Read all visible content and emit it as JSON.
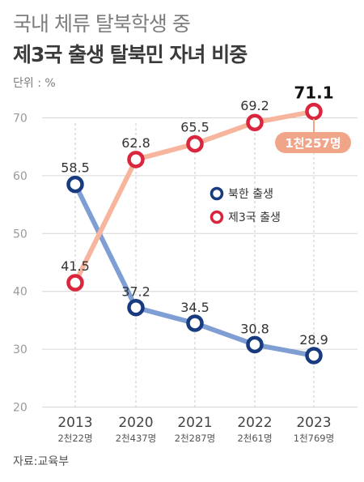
{
  "title": "국내 체류 탈북학생 중",
  "subtitle": "제3국 출생 탈북민 자녀 비중",
  "unit_label": "단위 : %",
  "source": "자료:교육부",
  "chart_data": {
    "type": "line",
    "x": [
      "2013",
      "2020",
      "2021",
      "2022",
      "2023"
    ],
    "x_sublabels": [
      "2천22명",
      "2천437명",
      "2천287명",
      "2천61명",
      "1천769명"
    ],
    "ylim": [
      20,
      72
    ],
    "yticks": [
      20,
      30,
      40,
      50,
      60,
      70
    ],
    "grid": true,
    "legend_position": "middle-right",
    "series": [
      {
        "name": "북한 출생",
        "values": [
          58.5,
          37.2,
          34.5,
          30.8,
          28.9
        ],
        "labels": [
          "58.5",
          "37.2",
          "34.5",
          "30.8",
          "28.9"
        ],
        "line_color": "#7f9ed4",
        "marker_color": "#173b7e"
      },
      {
        "name": "제3국 출생",
        "values": [
          41.5,
          62.8,
          65.5,
          69.2,
          71.1
        ],
        "labels": [
          "41.5",
          "62.8",
          "65.5",
          "69.2",
          "71.1"
        ],
        "line_color": "#f6b59c",
        "marker_color": "#d9263d"
      }
    ],
    "annotation": {
      "text": "1천257명",
      "color": "#f0a589"
    }
  }
}
